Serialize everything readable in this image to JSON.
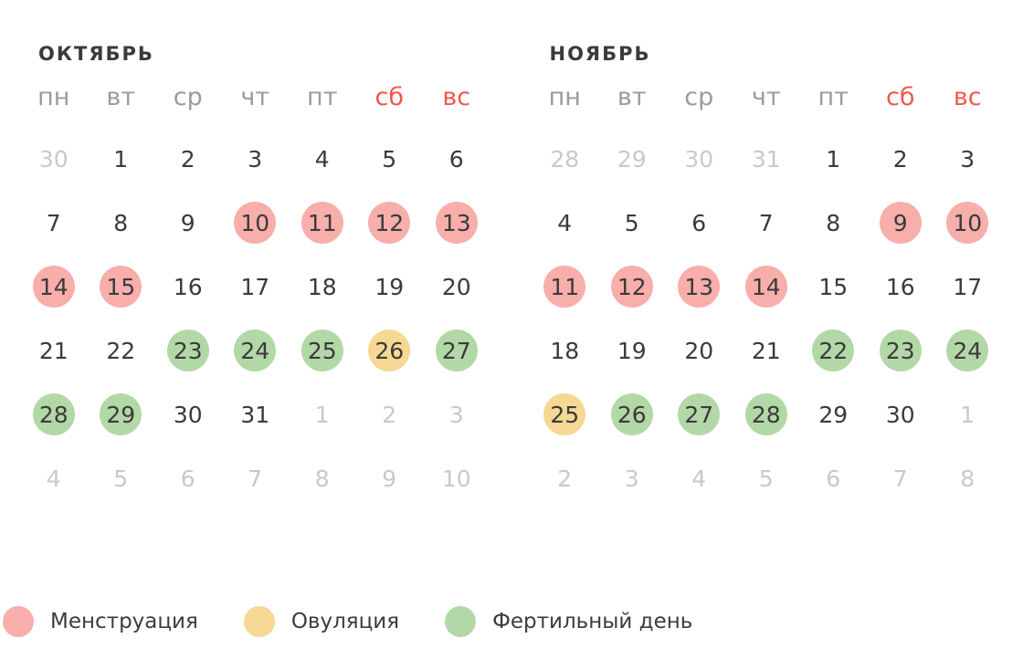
{
  "colors": {
    "background": "#ffffff",
    "title_text": "#3a3a3a",
    "day_text": "#3b3b3b",
    "muted_day_text": "#c9c9c9",
    "weekday_text": "#9b9b9b",
    "weekend_text": "#f1574e",
    "menstruation": "#f8aeab",
    "ovulation": "#f6d794",
    "fertile": "#b3d8a7"
  },
  "weekdays": [
    {
      "label": "пн",
      "weekend": false
    },
    {
      "label": "вт",
      "weekend": false
    },
    {
      "label": "ср",
      "weekend": false
    },
    {
      "label": "чт",
      "weekend": false
    },
    {
      "label": "пт",
      "weekend": false
    },
    {
      "label": "сб",
      "weekend": true
    },
    {
      "label": "вс",
      "weekend": true
    }
  ],
  "months": [
    {
      "title": "ОКТЯБРЬ",
      "days": [
        {
          "label": "30",
          "state": "out"
        },
        {
          "label": "1",
          "state": "none"
        },
        {
          "label": "2",
          "state": "none"
        },
        {
          "label": "3",
          "state": "none"
        },
        {
          "label": "4",
          "state": "none"
        },
        {
          "label": "5",
          "state": "none"
        },
        {
          "label": "6",
          "state": "none"
        },
        {
          "label": "7",
          "state": "none"
        },
        {
          "label": "8",
          "state": "none"
        },
        {
          "label": "9",
          "state": "none"
        },
        {
          "label": "10",
          "state": "menstruation"
        },
        {
          "label": "11",
          "state": "menstruation"
        },
        {
          "label": "12",
          "state": "menstruation"
        },
        {
          "label": "13",
          "state": "menstruation"
        },
        {
          "label": "14",
          "state": "menstruation"
        },
        {
          "label": "15",
          "state": "menstruation"
        },
        {
          "label": "16",
          "state": "none"
        },
        {
          "label": "17",
          "state": "none"
        },
        {
          "label": "18",
          "state": "none"
        },
        {
          "label": "19",
          "state": "none"
        },
        {
          "label": "20",
          "state": "none"
        },
        {
          "label": "21",
          "state": "none"
        },
        {
          "label": "22",
          "state": "none"
        },
        {
          "label": "23",
          "state": "fertile"
        },
        {
          "label": "24",
          "state": "fertile"
        },
        {
          "label": "25",
          "state": "fertile"
        },
        {
          "label": "26",
          "state": "ovulation"
        },
        {
          "label": "27",
          "state": "fertile"
        },
        {
          "label": "28",
          "state": "fertile"
        },
        {
          "label": "29",
          "state": "fertile"
        },
        {
          "label": "30",
          "state": "none"
        },
        {
          "label": "31",
          "state": "none"
        },
        {
          "label": "1",
          "state": "out"
        },
        {
          "label": "2",
          "state": "out"
        },
        {
          "label": "3",
          "state": "out"
        },
        {
          "label": "4",
          "state": "out"
        },
        {
          "label": "5",
          "state": "out"
        },
        {
          "label": "6",
          "state": "out"
        },
        {
          "label": "7",
          "state": "out"
        },
        {
          "label": "8",
          "state": "out"
        },
        {
          "label": "9",
          "state": "out"
        },
        {
          "label": "10",
          "state": "out"
        }
      ]
    },
    {
      "title": "НОЯБРЬ",
      "days": [
        {
          "label": "28",
          "state": "out"
        },
        {
          "label": "29",
          "state": "out"
        },
        {
          "label": "30",
          "state": "out"
        },
        {
          "label": "31",
          "state": "out"
        },
        {
          "label": "1",
          "state": "none"
        },
        {
          "label": "2",
          "state": "none"
        },
        {
          "label": "3",
          "state": "none"
        },
        {
          "label": "4",
          "state": "none"
        },
        {
          "label": "5",
          "state": "none"
        },
        {
          "label": "6",
          "state": "none"
        },
        {
          "label": "7",
          "state": "none"
        },
        {
          "label": "8",
          "state": "none"
        },
        {
          "label": "9",
          "state": "menstruation"
        },
        {
          "label": "10",
          "state": "menstruation"
        },
        {
          "label": "11",
          "state": "menstruation"
        },
        {
          "label": "12",
          "state": "menstruation"
        },
        {
          "label": "13",
          "state": "menstruation"
        },
        {
          "label": "14",
          "state": "menstruation"
        },
        {
          "label": "15",
          "state": "none"
        },
        {
          "label": "16",
          "state": "none"
        },
        {
          "label": "17",
          "state": "none"
        },
        {
          "label": "18",
          "state": "none"
        },
        {
          "label": "19",
          "state": "none"
        },
        {
          "label": "20",
          "state": "none"
        },
        {
          "label": "21",
          "state": "none"
        },
        {
          "label": "22",
          "state": "fertile"
        },
        {
          "label": "23",
          "state": "fertile"
        },
        {
          "label": "24",
          "state": "fertile"
        },
        {
          "label": "25",
          "state": "ovulation"
        },
        {
          "label": "26",
          "state": "fertile"
        },
        {
          "label": "27",
          "state": "fertile"
        },
        {
          "label": "28",
          "state": "fertile"
        },
        {
          "label": "29",
          "state": "none"
        },
        {
          "label": "30",
          "state": "none"
        },
        {
          "label": "1",
          "state": "out"
        },
        {
          "label": "2",
          "state": "out"
        },
        {
          "label": "3",
          "state": "out"
        },
        {
          "label": "4",
          "state": "out"
        },
        {
          "label": "5",
          "state": "out"
        },
        {
          "label": "6",
          "state": "out"
        },
        {
          "label": "7",
          "state": "out"
        },
        {
          "label": "8",
          "state": "out"
        }
      ]
    }
  ],
  "legend": [
    {
      "label": "Менструация",
      "type": "menstruation"
    },
    {
      "label": "Овуляция",
      "type": "ovulation"
    },
    {
      "label": "Фертильный день",
      "type": "fertile"
    }
  ]
}
